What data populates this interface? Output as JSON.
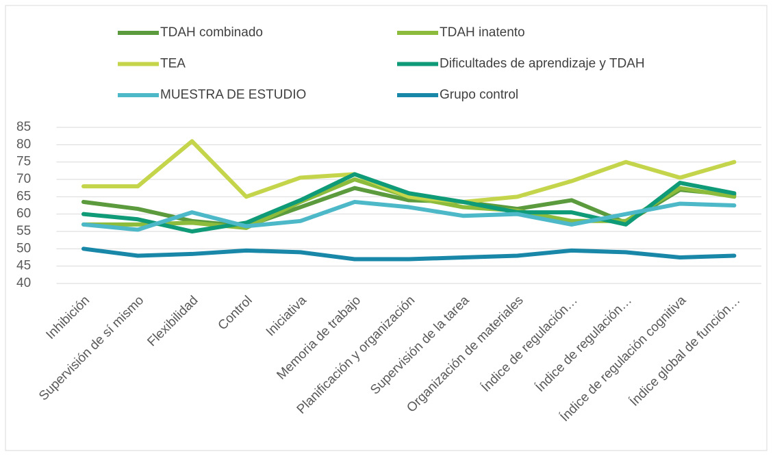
{
  "chart_data": {
    "type": "line",
    "categories": [
      "Inhibición",
      "Supervisión de sí mismo",
      "Flexibilidad",
      "Control",
      "Iniciativa",
      "Memoria de trabajo",
      "Planificación y organización",
      "Supervisión de la tarea",
      "Organización de materiales",
      "Índice de regulación…",
      "Índice de regulación…",
      "Índice de regulación cognitiva",
      "Índice global de función…"
    ],
    "series": [
      {
        "name": "TDAH combinado",
        "color": "#5b9b3d",
        "values": [
          63.5,
          61.5,
          58,
          56.5,
          62,
          67.5,
          64,
          63.5,
          61.5,
          64,
          57.5,
          67,
          65.5
        ]
      },
      {
        "name": "TDAH inatento",
        "color": "#8dbb3c",
        "values": [
          57,
          57,
          57.5,
          56,
          63.5,
          70,
          65,
          62,
          61,
          58,
          58,
          67.5,
          65
        ]
      },
      {
        "name": "TEA",
        "color": "#c5d54b",
        "values": [
          68,
          68,
          81,
          65,
          70.5,
          71.5,
          65,
          63.5,
          65,
          69.5,
          75,
          70.5,
          75
        ]
      },
      {
        "name": "Dificultades de aprendizaje y TDAH",
        "color": "#0f9a78",
        "values": [
          60,
          58.5,
          55,
          57.5,
          64,
          71.5,
          66,
          63.5,
          60.5,
          60.5,
          57,
          69,
          66
        ]
      },
      {
        "name": "MUESTRA DE ESTUDIO",
        "color": "#4db8c8",
        "values": [
          57,
          55.5,
          60.5,
          56.5,
          58,
          63.5,
          62,
          59.5,
          60,
          57,
          60,
          63,
          62.5
        ]
      },
      {
        "name": "Grupo control",
        "color": "#1987a8",
        "values": [
          50,
          48,
          48.5,
          49.5,
          49,
          47,
          47,
          47.5,
          48,
          49.5,
          49,
          47.5,
          48
        ]
      }
    ],
    "ylim": [
      40,
      85
    ],
    "yticks": [
      40,
      45,
      50,
      55,
      60,
      65,
      70,
      75,
      80,
      85
    ],
    "grid": true
  }
}
